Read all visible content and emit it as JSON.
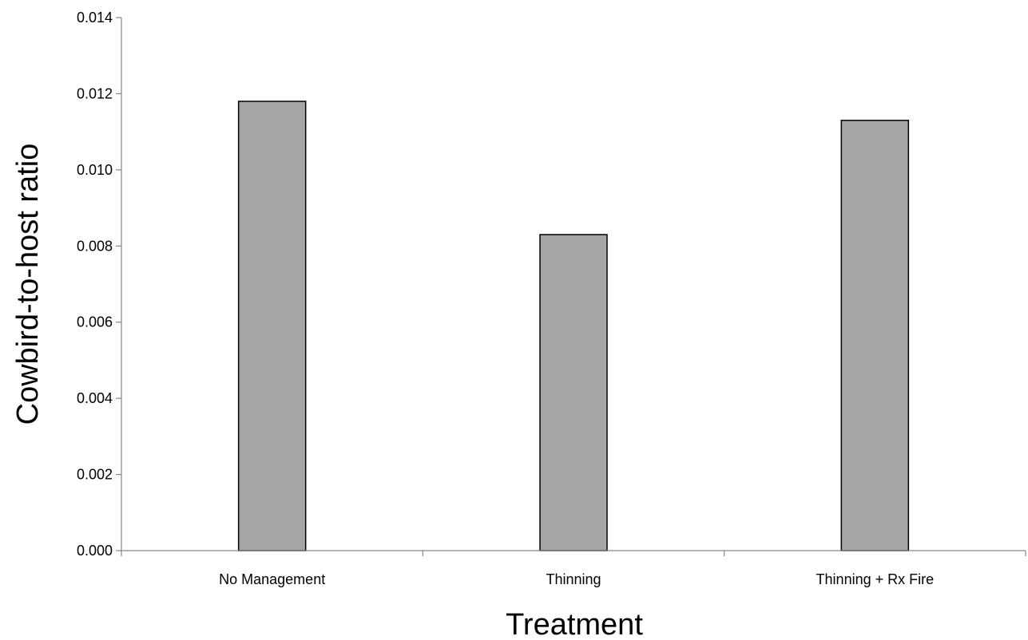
{
  "chart_data": {
    "type": "bar",
    "title": "",
    "xlabel": "Treatment",
    "ylabel": "Cowbird-to-host ratio",
    "categories": [
      "No Management",
      "Thinning",
      "Thinning + Rx Fire"
    ],
    "values": [
      0.0118,
      0.0083,
      0.0113
    ],
    "ylim": [
      0,
      0.014
    ],
    "yticks": [
      "0.000",
      "0.002",
      "0.004",
      "0.006",
      "0.008",
      "0.010",
      "0.012",
      "0.014"
    ],
    "bar_color": "#a6a6a6",
    "bar_edge_color": "#000000",
    "grid": false,
    "legend": "none"
  }
}
